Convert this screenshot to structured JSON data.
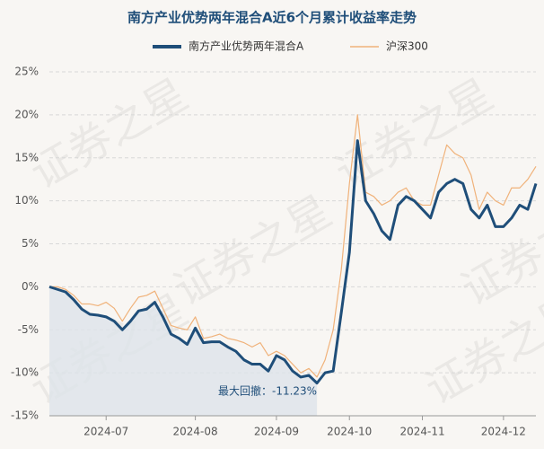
{
  "chart_data": {
    "type": "line",
    "title": "南方产业优势两年混合A近6个月累计收益率走势",
    "watermark": "证券之星",
    "annotation": "最大回撤：-11.23%",
    "categories": [
      null,
      null,
      null,
      null,
      null,
      null,
      null,
      "2024-07",
      null,
      null,
      null,
      null,
      null,
      null,
      null,
      null,
      null,
      null,
      "2024-08",
      null,
      null,
      null,
      null,
      null,
      null,
      null,
      null,
      null,
      "2024-09",
      null,
      null,
      null,
      null,
      null,
      null,
      null,
      null,
      "2024-10",
      null,
      null,
      null,
      null,
      null,
      null,
      null,
      null,
      "2024-11",
      null,
      null,
      null,
      null,
      null,
      null,
      null,
      null,
      null,
      "2024-12",
      null,
      null,
      null,
      null
    ],
    "series": [
      {
        "name": "南方产业优势两年混合A",
        "color": "#1f4e79",
        "values": [
          0,
          -0.3,
          -0.6,
          -1.5,
          -2.6,
          -3.2,
          -3.3,
          -3.5,
          -4.0,
          -5.0,
          -4.0,
          -2.8,
          -2.6,
          -1.8,
          -3.5,
          -5.5,
          -6.0,
          -6.7,
          -4.8,
          -6.5,
          -6.4,
          -6.4,
          -7.0,
          -7.5,
          -8.5,
          -9.0,
          -9.0,
          -9.8,
          -8.0,
          -8.5,
          -9.8,
          -10.5,
          -10.3,
          -11.2,
          -10.0,
          -9.8,
          -3.0,
          4.0,
          17.0,
          10.0,
          8.5,
          6.5,
          5.5,
          9.5,
          10.5,
          10.0,
          9.0,
          8.0,
          11.0,
          12.0,
          12.5,
          12.0,
          9.0,
          8.0,
          9.5,
          7.0,
          7.0,
          8.0,
          9.5,
          9.0,
          12.0
        ]
      },
      {
        "name": "沪深300",
        "color": "#f0b27a",
        "values": [
          0,
          0,
          -0.3,
          -1.0,
          -2.0,
          -2.0,
          -2.2,
          -1.8,
          -2.5,
          -4.0,
          -2.5,
          -1.2,
          -1.0,
          -0.5,
          -2.5,
          -4.5,
          -4.8,
          -5.0,
          -3.5,
          -6.0,
          -5.8,
          -5.5,
          -6.0,
          -6.2,
          -6.5,
          -7.0,
          -6.5,
          -8.0,
          -7.5,
          -8.0,
          -9.0,
          -10.0,
          -9.5,
          -10.5,
          -8.5,
          -5.0,
          2.0,
          12.0,
          20.0,
          11.0,
          10.5,
          9.5,
          10.0,
          11.0,
          11.5,
          10.0,
          9.5,
          9.5,
          13.0,
          16.5,
          15.5,
          15.0,
          13.0,
          9.0,
          11.0,
          10.0,
          9.5,
          11.5,
          11.5,
          12.5,
          14.0
        ]
      }
    ],
    "ylim": [
      -15,
      25
    ],
    "yticks": [
      {
        "value": -15,
        "label": "-15%"
      },
      {
        "value": -10,
        "label": "-10%"
      },
      {
        "value": -5,
        "label": "-5%"
      },
      {
        "value": 0,
        "label": "0%"
      },
      {
        "value": 5,
        "label": "5%"
      },
      {
        "value": 10,
        "label": "10%"
      },
      {
        "value": 15,
        "label": "15%"
      },
      {
        "value": 20,
        "label": "20%"
      },
      {
        "value": 25,
        "label": "25%"
      }
    ],
    "grid": true
  }
}
